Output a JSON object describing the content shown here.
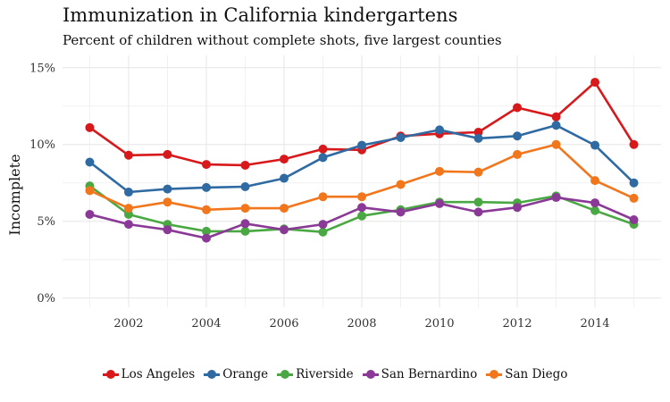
{
  "title": "Immunization in California kindergartens",
  "subtitle": "Percent of children without complete shots, five largest counties",
  "chart_data": {
    "type": "line",
    "title": "Immunization in California kindergartens",
    "subtitle": "Percent of children without complete shots, five largest counties",
    "xlabel": "",
    "ylabel": "Incomplete",
    "x": [
      2001,
      2002,
      2003,
      2004,
      2005,
      2006,
      2007,
      2008,
      2009,
      2010,
      2011,
      2012,
      2013,
      2014,
      2015
    ],
    "x_ticks": [
      2002,
      2004,
      2006,
      2008,
      2010,
      2012,
      2014
    ],
    "x_tick_labels": [
      "2002",
      "2004",
      "2006",
      "2008",
      "2010",
      "2012",
      "2014"
    ],
    "y_ticks": [
      0,
      5,
      10,
      15
    ],
    "y_tick_labels": [
      "0%",
      "5%",
      "10%",
      "15%"
    ],
    "xlim": [
      2000.3,
      2015.7
    ],
    "ylim": [
      -0.6,
      15.8
    ],
    "grid": true,
    "legend_position": "bottom",
    "series": [
      {
        "name": "Los Angeles",
        "color": "#d7191c",
        "values": [
          11.1,
          9.3,
          9.35,
          8.7,
          8.65,
          9.05,
          9.7,
          9.65,
          10.55,
          10.7,
          10.8,
          12.4,
          11.8,
          14.05,
          10.0
        ]
      },
      {
        "name": "Orange",
        "color": "#2f6aa3",
        "values": [
          8.85,
          6.9,
          7.1,
          7.2,
          7.25,
          7.8,
          9.15,
          9.95,
          10.45,
          10.95,
          10.4,
          10.55,
          11.25,
          9.95,
          7.5
        ]
      },
      {
        "name": "Riverside",
        "color": "#4aa843",
        "values": [
          7.3,
          5.45,
          4.8,
          4.35,
          4.35,
          4.5,
          4.3,
          5.35,
          5.75,
          6.25,
          6.25,
          6.2,
          6.65,
          5.7,
          4.8
        ]
      },
      {
        "name": "San Bernardino",
        "color": "#8a3a96",
        "values": [
          5.45,
          4.8,
          4.45,
          3.9,
          4.85,
          4.45,
          4.8,
          5.9,
          5.6,
          6.15,
          5.6,
          5.9,
          6.55,
          6.2,
          5.1
        ]
      },
      {
        "name": "San Diego",
        "color": "#f2761c",
        "values": [
          7.0,
          5.85,
          6.25,
          5.75,
          5.85,
          5.85,
          6.6,
          6.6,
          7.4,
          8.25,
          8.2,
          9.35,
          10.0,
          7.65,
          6.5
        ]
      }
    ]
  }
}
